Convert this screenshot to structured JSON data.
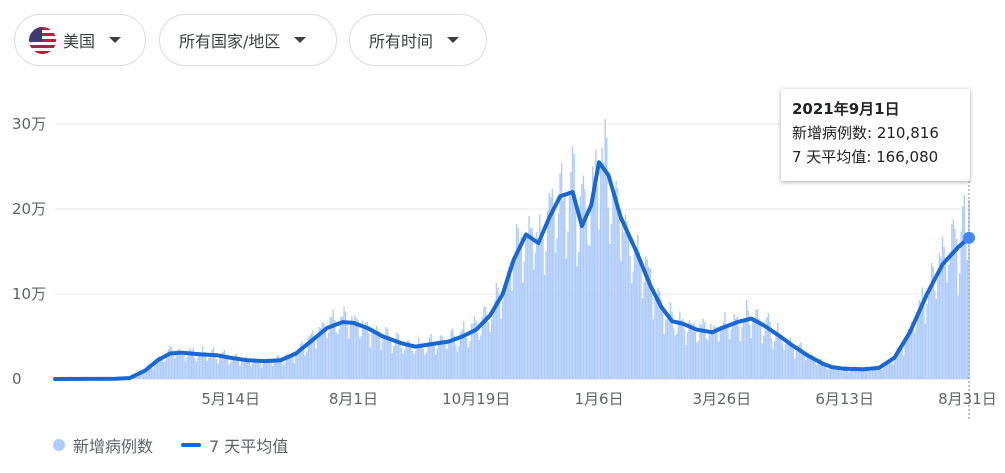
{
  "filters": {
    "country": "美国",
    "region": "所有国家/地区",
    "time": "所有时间"
  },
  "tooltip": {
    "date": "2021年9月1日",
    "cases_label": "新增病例数",
    "cases_value": "210,816",
    "avg_label": "7 天平均值",
    "avg_value": "166,080"
  },
  "legend": {
    "cases": "新增病例数",
    "avg": "7 天平均值"
  },
  "colors": {
    "bars": "#aecbfa",
    "line": "#1967d2",
    "grid": "#e8eaed"
  },
  "chart_data": {
    "type": "bar",
    "title": "",
    "xlabel": "",
    "ylabel": "",
    "ylim": [
      0,
      300000
    ],
    "y_ticks": [
      0,
      100000,
      200000,
      300000
    ],
    "y_tick_labels": [
      "0",
      "10万",
      "20万",
      "30万"
    ],
    "x_range": [
      "2020-01-22",
      "2021-09-01"
    ],
    "x_ticks": [
      {
        "date": "2020-05-14",
        "label": "5月14日"
      },
      {
        "date": "2020-08-01",
        "label": "8月1日"
      },
      {
        "date": "2020-10-19",
        "label": "10月19日"
      },
      {
        "date": "2021-01-06",
        "label": "1月6日"
      },
      {
        "date": "2021-03-26",
        "label": "3月26日"
      },
      {
        "date": "2021-06-13",
        "label": "6月13日"
      },
      {
        "date": "2021-08-31",
        "label": "8月31日"
      }
    ],
    "series": [
      {
        "name": "7 天平均值",
        "type": "line",
        "points": [
          [
            "2020-01-22",
            0
          ],
          [
            "2020-03-01",
            200
          ],
          [
            "2020-03-10",
            1000
          ],
          [
            "2020-03-20",
            10000
          ],
          [
            "2020-03-28",
            22000
          ],
          [
            "2020-04-05",
            30000
          ],
          [
            "2020-04-12",
            31000
          ],
          [
            "2020-04-25",
            29000
          ],
          [
            "2020-05-05",
            28000
          ],
          [
            "2020-05-14",
            25000
          ],
          [
            "2020-05-25",
            22000
          ],
          [
            "2020-06-05",
            21000
          ],
          [
            "2020-06-15",
            22000
          ],
          [
            "2020-06-25",
            30000
          ],
          [
            "2020-07-05",
            45000
          ],
          [
            "2020-07-15",
            60000
          ],
          [
            "2020-07-25",
            67000
          ],
          [
            "2020-08-01",
            66000
          ],
          [
            "2020-08-10",
            60000
          ],
          [
            "2020-08-20",
            50000
          ],
          [
            "2020-09-01",
            42000
          ],
          [
            "2020-09-10",
            38000
          ],
          [
            "2020-09-20",
            41000
          ],
          [
            "2020-10-01",
            44000
          ],
          [
            "2020-10-10",
            50000
          ],
          [
            "2020-10-19",
            58000
          ],
          [
            "2020-10-28",
            75000
          ],
          [
            "2020-11-05",
            100000
          ],
          [
            "2020-11-12",
            140000
          ],
          [
            "2020-11-20",
            170000
          ],
          [
            "2020-11-28",
            160000
          ],
          [
            "2020-12-05",
            190000
          ],
          [
            "2020-12-12",
            215000
          ],
          [
            "2020-12-20",
            220000
          ],
          [
            "2020-12-26",
            180000
          ],
          [
            "2021-01-01",
            205000
          ],
          [
            "2021-01-06",
            255000
          ],
          [
            "2021-01-12",
            240000
          ],
          [
            "2021-01-20",
            190000
          ],
          [
            "2021-01-30",
            150000
          ],
          [
            "2021-02-08",
            110000
          ],
          [
            "2021-02-15",
            85000
          ],
          [
            "2021-02-22",
            68000
          ],
          [
            "2021-03-01",
            65000
          ],
          [
            "2021-03-10",
            58000
          ],
          [
            "2021-03-20",
            55000
          ],
          [
            "2021-03-26",
            60000
          ],
          [
            "2021-04-05",
            67000
          ],
          [
            "2021-04-14",
            71000
          ],
          [
            "2021-04-22",
            63000
          ],
          [
            "2021-05-01",
            52000
          ],
          [
            "2021-05-10",
            40000
          ],
          [
            "2021-05-20",
            28000
          ],
          [
            "2021-05-30",
            18000
          ],
          [
            "2021-06-05",
            14000
          ],
          [
            "2021-06-13",
            12000
          ],
          [
            "2021-06-25",
            11500
          ],
          [
            "2021-07-05",
            13000
          ],
          [
            "2021-07-15",
            25000
          ],
          [
            "2021-07-25",
            55000
          ],
          [
            "2021-08-05",
            100000
          ],
          [
            "2021-08-15",
            135000
          ],
          [
            "2021-08-25",
            155000
          ],
          [
            "2021-09-01",
            166080
          ]
        ]
      },
      {
        "name": "新增病例数",
        "type": "bar",
        "highlight": {
          "date": "2021-09-01",
          "value": 210816
        }
      }
    ]
  }
}
